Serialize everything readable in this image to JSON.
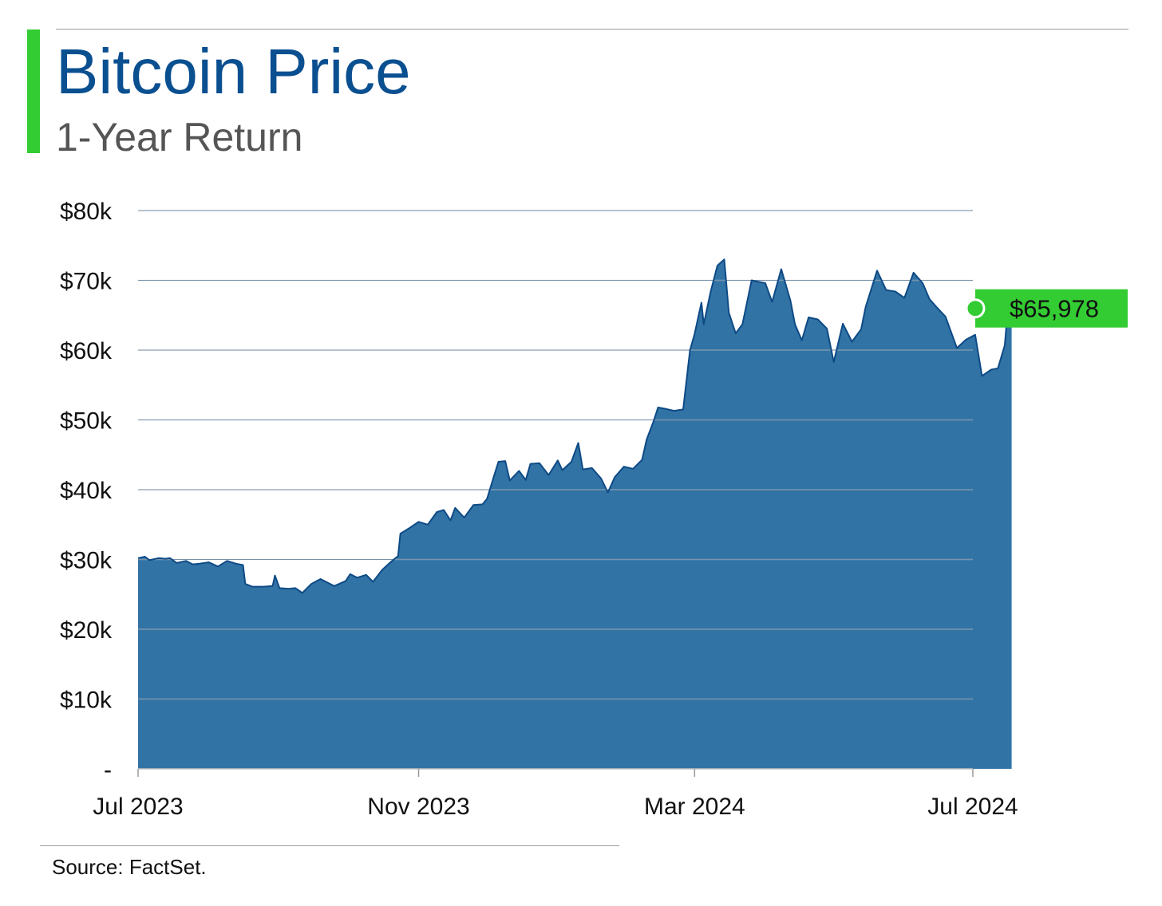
{
  "header": {
    "title": "Bitcoin Price",
    "subtitle": "1-Year Return"
  },
  "footer": {
    "source": "Source: FactSet."
  },
  "colors": {
    "accent": "#33cc33",
    "title": "#0a4f90",
    "area_fill": "#3273a5",
    "area_line": "#0e4a86"
  },
  "chart_data": {
    "type": "area",
    "xlabel": "",
    "ylabel": "",
    "ylim": [
      0,
      80000
    ],
    "yticks": [
      {
        "value": 0,
        "label": "-"
      },
      {
        "value": 10000,
        "label": "$10k"
      },
      {
        "value": 20000,
        "label": "$20k"
      },
      {
        "value": 30000,
        "label": "$30k"
      },
      {
        "value": 40000,
        "label": "$40k"
      },
      {
        "value": 50000,
        "label": "$50k"
      },
      {
        "value": 60000,
        "label": "$60k"
      },
      {
        "value": 70000,
        "label": "$70k"
      },
      {
        "value": 80000,
        "label": "$80k"
      }
    ],
    "xlim": [
      "2023-07-01",
      "2024-07-01"
    ],
    "xticks": [
      {
        "date": "2023-07-01",
        "label": "Jul 2023"
      },
      {
        "date": "2023-11-01",
        "label": "Nov 2023"
      },
      {
        "date": "2024-03-01",
        "label": "Mar 2024"
      },
      {
        "date": "2024-07-01",
        "label": "Jul 2024"
      }
    ],
    "grid": true,
    "last_value_label": "$65,978",
    "series": [
      {
        "points": [
          [
            "2023-07-01",
            30200
          ],
          [
            "2023-07-04",
            30400
          ],
          [
            "2023-07-06",
            29900
          ],
          [
            "2023-07-10",
            30200
          ],
          [
            "2023-07-13",
            30100
          ],
          [
            "2023-07-15",
            30200
          ],
          [
            "2023-07-18",
            29500
          ],
          [
            "2023-07-22",
            29800
          ],
          [
            "2023-07-25",
            29300
          ],
          [
            "2023-07-28",
            29400
          ],
          [
            "2023-08-01",
            29600
          ],
          [
            "2023-08-05",
            29000
          ],
          [
            "2023-08-09",
            29800
          ],
          [
            "2023-08-13",
            29400
          ],
          [
            "2023-08-16",
            29200
          ],
          [
            "2023-08-17",
            26500
          ],
          [
            "2023-08-20",
            26100
          ],
          [
            "2023-08-25",
            26100
          ],
          [
            "2023-08-29",
            26200
          ],
          [
            "2023-08-30",
            27700
          ],
          [
            "2023-09-01",
            25900
          ],
          [
            "2023-09-05",
            25800
          ],
          [
            "2023-09-08",
            25900
          ],
          [
            "2023-09-11",
            25200
          ],
          [
            "2023-09-15",
            26500
          ],
          [
            "2023-09-19",
            27200
          ],
          [
            "2023-09-25",
            26200
          ],
          [
            "2023-09-30",
            26900
          ],
          [
            "2023-10-02",
            27900
          ],
          [
            "2023-10-05",
            27400
          ],
          [
            "2023-10-09",
            27800
          ],
          [
            "2023-10-12",
            26800
          ],
          [
            "2023-10-16",
            28500
          ],
          [
            "2023-10-20",
            29700
          ],
          [
            "2023-10-23",
            30500
          ],
          [
            "2023-10-24",
            33700
          ],
          [
            "2023-10-28",
            34500
          ],
          [
            "2023-11-01",
            35400
          ],
          [
            "2023-11-05",
            35000
          ],
          [
            "2023-11-09",
            36800
          ],
          [
            "2023-11-12",
            37100
          ],
          [
            "2023-11-15",
            35600
          ],
          [
            "2023-11-17",
            37400
          ],
          [
            "2023-11-21",
            36000
          ],
          [
            "2023-11-25",
            37800
          ],
          [
            "2023-11-29",
            37900
          ],
          [
            "2023-12-01",
            38700
          ],
          [
            "2023-12-04",
            41900
          ],
          [
            "2023-12-06",
            44000
          ],
          [
            "2023-12-09",
            44100
          ],
          [
            "2023-12-11",
            41300
          ],
          [
            "2023-12-15",
            42700
          ],
          [
            "2023-12-18",
            41400
          ],
          [
            "2023-12-20",
            43700
          ],
          [
            "2023-12-24",
            43800
          ],
          [
            "2023-12-28",
            42100
          ],
          [
            "2024-01-01",
            44200
          ],
          [
            "2024-01-03",
            42800
          ],
          [
            "2024-01-07",
            44000
          ],
          [
            "2024-01-10",
            46700
          ],
          [
            "2024-01-12",
            42900
          ],
          [
            "2024-01-16",
            43100
          ],
          [
            "2024-01-20",
            41600
          ],
          [
            "2024-01-23",
            39600
          ],
          [
            "2024-01-26",
            41800
          ],
          [
            "2024-01-30",
            43300
          ],
          [
            "2024-02-03",
            43000
          ],
          [
            "2024-02-07",
            44300
          ],
          [
            "2024-02-09",
            47200
          ],
          [
            "2024-02-12",
            49800
          ],
          [
            "2024-02-14",
            51800
          ],
          [
            "2024-02-17",
            51600
          ],
          [
            "2024-02-21",
            51300
          ],
          [
            "2024-02-25",
            51500
          ],
          [
            "2024-02-28",
            60000
          ],
          [
            "2024-03-01",
            62300
          ],
          [
            "2024-03-04",
            66800
          ],
          [
            "2024-03-05",
            63700
          ],
          [
            "2024-03-08",
            68300
          ],
          [
            "2024-03-11",
            72100
          ],
          [
            "2024-03-14",
            73000
          ],
          [
            "2024-03-16",
            65400
          ],
          [
            "2024-03-19",
            62400
          ],
          [
            "2024-03-22",
            63700
          ],
          [
            "2024-03-26",
            70000
          ],
          [
            "2024-03-29",
            69800
          ],
          [
            "2024-04-01",
            69600
          ],
          [
            "2024-04-04",
            66900
          ],
          [
            "2024-04-08",
            71600
          ],
          [
            "2024-04-12",
            67100
          ],
          [
            "2024-04-14",
            63700
          ],
          [
            "2024-04-17",
            61400
          ],
          [
            "2024-04-20",
            64700
          ],
          [
            "2024-04-24",
            64400
          ],
          [
            "2024-04-28",
            63100
          ],
          [
            "2024-05-01",
            58300
          ],
          [
            "2024-05-05",
            63800
          ],
          [
            "2024-05-09",
            61200
          ],
          [
            "2024-05-13",
            63000
          ],
          [
            "2024-05-15",
            66200
          ],
          [
            "2024-05-20",
            71400
          ],
          [
            "2024-05-24",
            68600
          ],
          [
            "2024-05-28",
            68400
          ],
          [
            "2024-06-01",
            67500
          ],
          [
            "2024-06-05",
            71100
          ],
          [
            "2024-06-09",
            69600
          ],
          [
            "2024-06-12",
            67300
          ],
          [
            "2024-06-15",
            66200
          ],
          [
            "2024-06-19",
            64800
          ],
          [
            "2024-06-24",
            60300
          ],
          [
            "2024-06-28",
            61500
          ],
          [
            "2024-07-02",
            62200
          ],
          [
            "2024-07-05",
            56300
          ],
          [
            "2024-07-09",
            57200
          ],
          [
            "2024-07-12",
            57400
          ],
          [
            "2024-07-15",
            60700
          ],
          [
            "2024-07-16",
            64700
          ],
          [
            "2024-07-18",
            65978
          ]
        ]
      }
    ]
  }
}
